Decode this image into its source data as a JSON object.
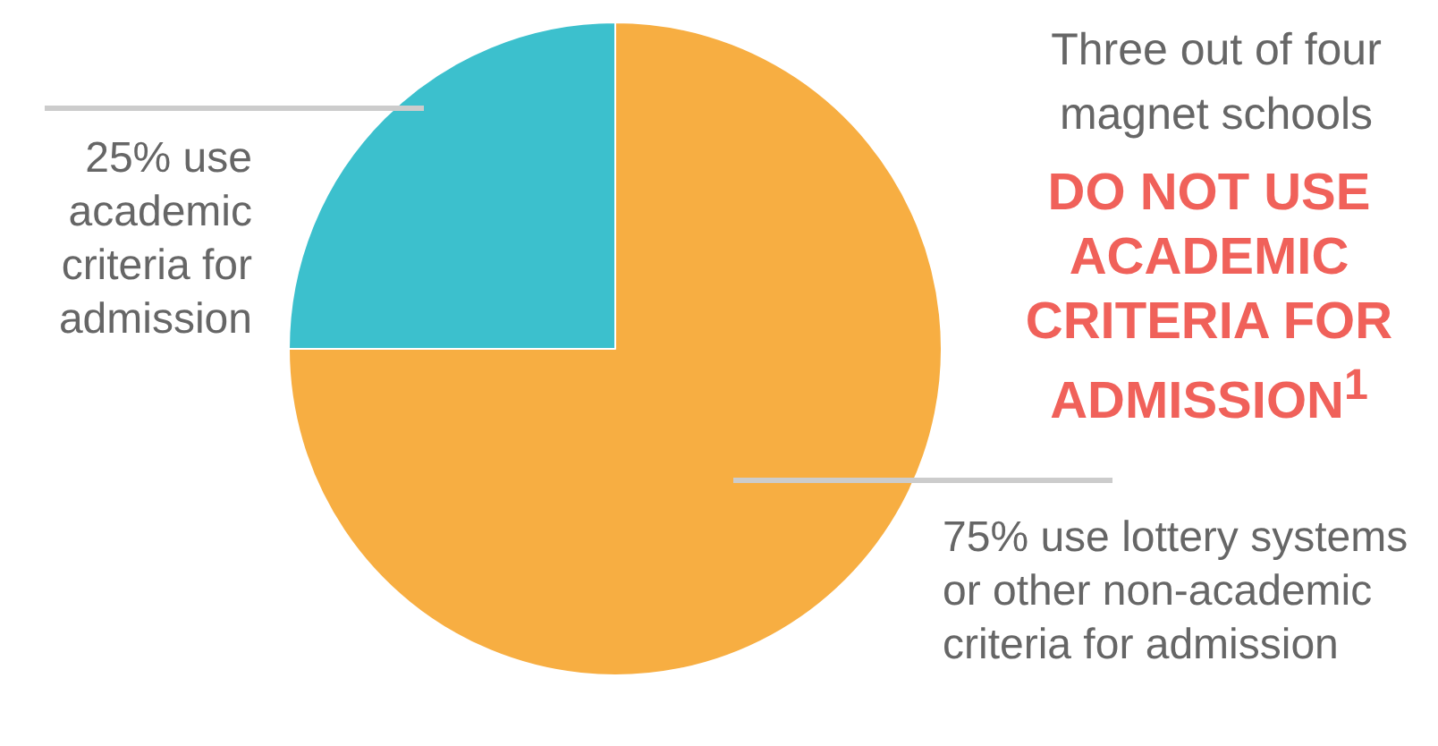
{
  "chart_data": {
    "type": "pie",
    "title": "Three out of four magnet schools",
    "subtitle": "DO NOT USE ACADEMIC CRITERIA FOR ADMISSION$^{1}$",
    "categories": [
      "75% use lottery systems or other non-academic criteria for admission",
      "25% use academic criteria for admission"
    ],
    "values": [
      75,
      25
    ],
    "colors": [
      "#f7ae42",
      "#3cc0cd"
    ]
  }
}
